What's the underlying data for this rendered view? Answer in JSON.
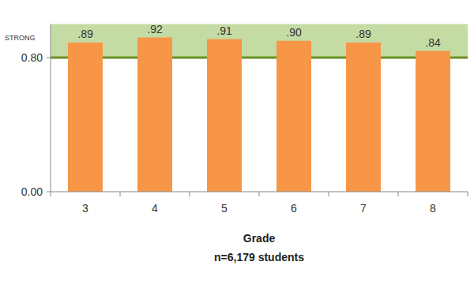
{
  "chart_data": {
    "type": "bar",
    "categories": [
      "3",
      "4",
      "5",
      "6",
      "7",
      "8"
    ],
    "values": [
      0.89,
      0.92,
      0.91,
      0.9,
      0.89,
      0.84
    ],
    "value_labels": [
      ".89",
      ".92",
      ".91",
      ".90",
      ".89",
      ".84"
    ],
    "color": "#f79646",
    "ylim": [
      0,
      1
    ],
    "yticks": [
      {
        "value": 0,
        "label": "0.00"
      },
      {
        "value": 0.8,
        "label": "0.80"
      }
    ],
    "grid": false,
    "data_labels": true,
    "xlabel": "Grade",
    "caption": "n=6,179 students",
    "annotations": [
      {
        "text": "STRONG",
        "y": 0.8
      }
    ]
  }
}
